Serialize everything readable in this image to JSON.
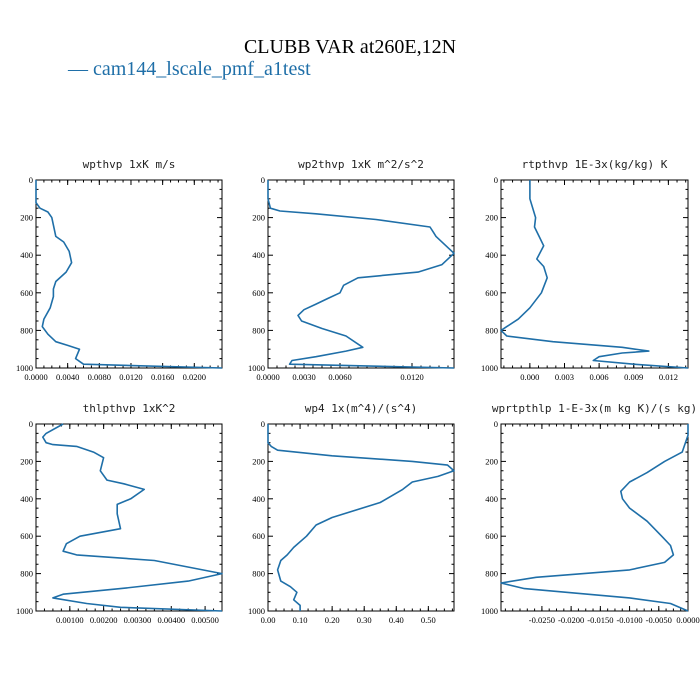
{
  "title": "CLUBB VAR at260E,12N",
  "legend": "— cam144_lscale_pmf_a1test",
  "colors": {
    "series": "#1f6fa8",
    "axis": "#000000",
    "title": "#000000"
  },
  "chart_data": [
    {
      "type": "line",
      "title": "wpthvp  1xK m/s",
      "series_name": "cam144_lscale_pmf_a1test",
      "xlim": [
        0,
        0.0235
      ],
      "ylim": [
        1000,
        0
      ],
      "xticks": [
        0,
        0.004,
        0.008,
        0.012,
        0.016,
        0.02
      ],
      "xtick_labels": [
        "0.0000",
        "0.0040",
        "0.0080",
        "0.0120",
        "0.0160",
        "0.0200"
      ],
      "yticks": [
        0,
        200,
        400,
        600,
        800,
        1000
      ],
      "x": [
        0.0,
        0.0,
        0.0005,
        0.0015,
        0.002,
        0.0022,
        0.0025,
        0.0035,
        0.0042,
        0.0045,
        0.0038,
        0.0025,
        0.0022,
        0.0022,
        0.0018,
        0.001,
        0.0008,
        0.0015,
        0.0025,
        0.004,
        0.0055,
        0.005,
        0.006,
        0.0235
      ],
      "y": [
        0,
        120,
        150,
        170,
        200,
        240,
        300,
        330,
        380,
        440,
        490,
        540,
        580,
        620,
        680,
        740,
        780,
        820,
        860,
        880,
        900,
        950,
        980,
        1000
      ]
    },
    {
      "type": "line",
      "title": "wp2thvp  1xK m^2/s^2",
      "series_name": "cam144_lscale_pmf_a1test",
      "xlim": [
        0,
        0.0155
      ],
      "ylim": [
        1000,
        0
      ],
      "xticks": [
        0,
        0.003,
        0.006,
        0.012
      ],
      "xtick_labels": [
        "0.0000",
        "0.0030",
        "0.0060",
        "0.0120"
      ],
      "yticks": [
        0,
        200,
        400,
        600,
        800,
        1000
      ],
      "x": [
        0.0,
        0.0,
        0.0002,
        0.001,
        0.004,
        0.009,
        0.0135,
        0.0138,
        0.014,
        0.0155,
        0.0145,
        0.0125,
        0.0075,
        0.0063,
        0.006,
        0.005,
        0.004,
        0.003,
        0.0025,
        0.0028,
        0.0045,
        0.0065,
        0.0079,
        0.0065,
        0.004,
        0.002,
        0.0018,
        0.0155
      ],
      "y": [
        0,
        100,
        150,
        165,
        180,
        210,
        250,
        280,
        300,
        390,
        450,
        490,
        520,
        560,
        600,
        630,
        660,
        690,
        720,
        750,
        790,
        830,
        890,
        910,
        940,
        960,
        980,
        1000
      ]
    },
    {
      "type": "line",
      "title": "rtpthvp  1E-3x(kg/kg) K",
      "series_name": "cam144_lscale_pmf_a1test",
      "xlim": [
        -0.0025,
        0.0137
      ],
      "ylim": [
        1000,
        0
      ],
      "xticks": [
        0,
        0.003,
        0.006,
        0.009,
        0.012
      ],
      "xtick_labels": [
        "0.000",
        "0.003",
        "0.006",
        "0.009",
        "0.012"
      ],
      "yticks": [
        0,
        200,
        400,
        600,
        800,
        1000
      ],
      "x": [
        0.0,
        0.0,
        0.0005,
        0.0004,
        0.0008,
        0.0012,
        0.0006,
        0.0012,
        0.0015,
        0.001,
        0.0,
        -0.001,
        -0.002,
        -0.0025,
        -0.002,
        0.002,
        0.008,
        0.0103,
        0.008,
        0.006,
        0.0055,
        0.009,
        0.0137
      ],
      "y": [
        0,
        100,
        200,
        250,
        300,
        350,
        420,
        460,
        520,
        600,
        680,
        740,
        780,
        800,
        830,
        860,
        890,
        910,
        920,
        940,
        960,
        980,
        1000
      ]
    },
    {
      "type": "line",
      "title": "thlpthvp  1xK^2",
      "series_name": "cam144_lscale_pmf_a1test",
      "xlim": [
        0,
        0.0055
      ],
      "ylim": [
        1000,
        0
      ],
      "xticks": [
        0.001,
        0.002,
        0.003,
        0.004,
        0.005
      ],
      "xtick_labels": [
        "0.00100",
        "0.00200",
        "0.00300",
        "0.00400",
        "0.00500"
      ],
      "yticks": [
        0,
        200,
        400,
        600,
        800,
        1000
      ],
      "x": [
        0.0008,
        0.0003,
        0.0002,
        0.0003,
        0.0005,
        0.0012,
        0.0017,
        0.002,
        0.0019,
        0.0021,
        0.0026,
        0.0032,
        0.0028,
        0.0024,
        0.0024,
        0.0025,
        0.0013,
        0.0009,
        0.0008,
        0.0012,
        0.0035,
        0.0055,
        0.0045,
        0.0025,
        0.0008,
        0.0005,
        0.0015,
        0.0025,
        0.0055
      ],
      "y": [
        0,
        50,
        70,
        100,
        110,
        120,
        150,
        180,
        250,
        300,
        320,
        350,
        400,
        430,
        480,
        560,
        600,
        640,
        680,
        700,
        730,
        800,
        840,
        880,
        910,
        930,
        960,
        980,
        1000
      ]
    },
    {
      "type": "line",
      "title": "wp4  1x(m^4)/(s^4)",
      "series_name": "cam144_lscale_pmf_a1test",
      "xlim": [
        0,
        0.58
      ],
      "ylim": [
        1000,
        0
      ],
      "xticks": [
        0,
        0.1,
        0.2,
        0.3,
        0.4,
        0.5
      ],
      "xtick_labels": [
        "0.00",
        "0.10",
        "0.20",
        "0.30",
        "0.40",
        "0.50"
      ],
      "yticks": [
        0,
        200,
        400,
        600,
        800,
        1000
      ],
      "x": [
        0.0,
        0.0,
        0.01,
        0.03,
        0.2,
        0.45,
        0.56,
        0.58,
        0.53,
        0.45,
        0.42,
        0.35,
        0.2,
        0.15,
        0.12,
        0.08,
        0.06,
        0.04,
        0.03,
        0.04,
        0.07,
        0.09,
        0.08,
        0.1,
        0.1
      ],
      "y": [
        0,
        100,
        120,
        140,
        170,
        200,
        220,
        250,
        280,
        310,
        350,
        420,
        500,
        540,
        600,
        660,
        700,
        730,
        780,
        840,
        870,
        900,
        940,
        970,
        1000
      ]
    },
    {
      "type": "line",
      "title": "wprtpthlp  1-E-3x(m kg K)/(s kg)",
      "series_name": "cam144_lscale_pmf_a1test",
      "xlim": [
        -0.032,
        0.0
      ],
      "ylim": [
        1000,
        0
      ],
      "xticks": [
        -0.025,
        -0.02,
        -0.015,
        -0.01,
        -0.005,
        0.0
      ],
      "xtick_labels": [
        "-0.0250",
        "-0.0200",
        "-0.0150",
        "-0.0100",
        "-0.0050",
        "0.0000"
      ],
      "yticks": [
        0,
        200,
        400,
        600,
        800,
        1000
      ],
      "x": [
        0.0,
        0.0,
        -0.001,
        -0.004,
        -0.007,
        -0.01,
        -0.0115,
        -0.0112,
        -0.01,
        -0.007,
        -0.0045,
        -0.003,
        -0.0025,
        -0.004,
        -0.01,
        -0.026,
        -0.032,
        -0.028,
        -0.01,
        -0.003,
        0.0
      ],
      "y": [
        0,
        60,
        150,
        200,
        260,
        310,
        360,
        400,
        450,
        520,
        600,
        650,
        700,
        740,
        780,
        820,
        850,
        880,
        930,
        960,
        1000
      ]
    }
  ]
}
